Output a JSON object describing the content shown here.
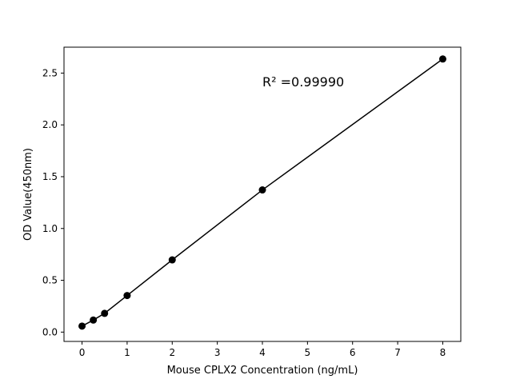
{
  "chart_data": {
    "type": "scatter",
    "title": "",
    "xlabel": "Mouse CPLX2 Concentration (ng/mL)",
    "ylabel": "OD Value(450nm)",
    "xlim": [
      -0.4,
      8.4
    ],
    "ylim": [
      -0.09,
      2.75
    ],
    "xticks": [
      0,
      1,
      2,
      3,
      4,
      5,
      6,
      7,
      8
    ],
    "xtick_labels": [
      "0",
      "1",
      "2",
      "3",
      "4",
      "5",
      "6",
      "7",
      "8"
    ],
    "yticks": [
      0.0,
      0.5,
      1.0,
      1.5,
      2.0,
      2.5
    ],
    "ytick_labels": [
      "0.0",
      "0.5",
      "1.0",
      "1.5",
      "2.0",
      "2.5"
    ],
    "grid": false,
    "annotation": "R² =0.99990",
    "series": [
      {
        "x": [
          0,
          0.25,
          0.5,
          1,
          2,
          4,
          8
        ],
        "y": [
          0.058,
          0.116,
          0.181,
          0.353,
          0.697,
          1.372,
          2.636
        ],
        "color": "#000000",
        "marker": "circle",
        "line": true
      }
    ]
  }
}
